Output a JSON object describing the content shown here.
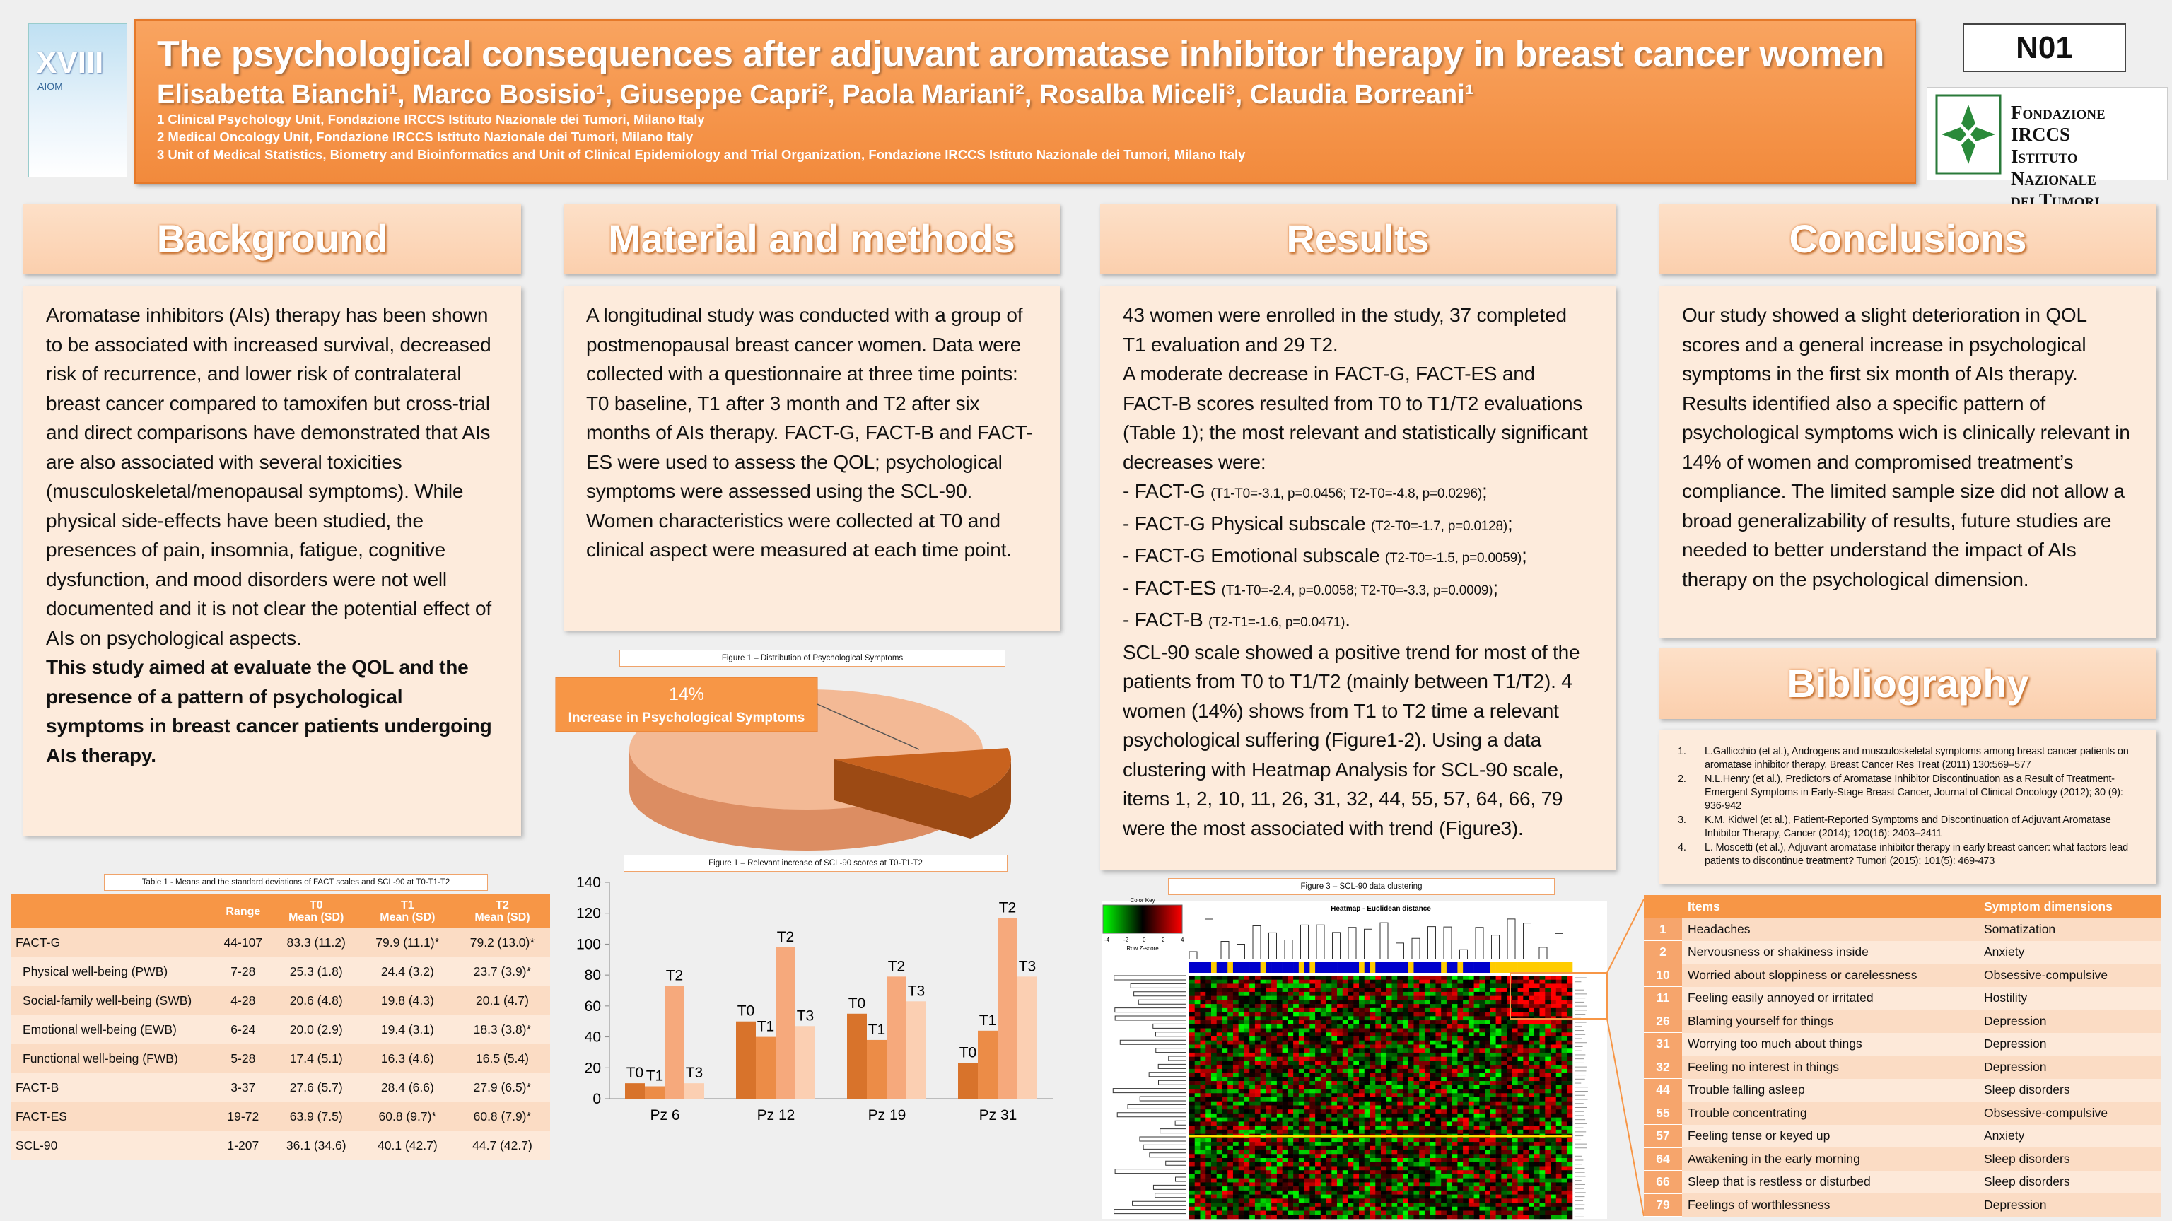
{
  "header": {
    "title": "The psychological consequences after adjuvant aromatase inhibitor therapy in breast cancer women",
    "authors": "Elisabetta Bianchi¹,  Marco Bosisio¹, Giuseppe Capri², Paola Mariani², Rosalba Miceli³, Claudia Borreani¹",
    "affiliations": [
      "1 Clinical Psychology Unit, Fondazione IRCCS Istituto Nazionale dei Tumori, Milano Italy",
      "2 Medical Oncology Unit, Fondazione IRCCS Istituto Nazionale dei Tumori, Milano Italy",
      "3 Unit of Medical Statistics, Biometry and Bioinformatics and Unit of Clinical Epidemiology and Trial Organization, Fondazione IRCCS Istituto Nazionale dei Tumori, Milano Italy"
    ],
    "code": "N01",
    "congress": [
      "XVIII",
      "AIOM"
    ],
    "logo": [
      "Fondazione IRCCS",
      "Istituto Nazionale",
      "dei Tumori"
    ]
  },
  "background": {
    "heading": "Background",
    "text": "Aromatase inhibitors (AIs) therapy has been shown to be associated with increased survival, decreased risk of recurrence, and lower risk of contralateral breast cancer compared to tamoxifen but cross-trial and direct comparisons have demonstrated that AIs are also associated with several toxicities (musculoskeletal/menopausal symptoms). While physical side-effects have been studied, the presences of pain, insomnia, fatigue, cognitive dysfunction, and mood disorders were not well documented and it is not clear the potential effect of AIs on psychological aspects.",
    "aim": "This study aimed at evaluate the QOL and the presence of a pattern of psychological symptoms in breast cancer patients undergoing AIs therapy."
  },
  "methods": {
    "heading": "Material and methods",
    "text": "A longitudinal study was conducted with a group of postmenopausal breast cancer women. Data were collected with a questionnaire at three time points: T0 baseline, T1 after 3 month and T2 after six months of AIs therapy. FACT-G, FACT-B and FACT-ES were used to assess the QOL; psychological symptoms were assessed using the SCL-90. Women characteristics were collected at T0 and clinical aspect were measured at each time point."
  },
  "results": {
    "heading": "Results",
    "intro": [
      "43 women were enrolled in the study, 37 completed T1 evaluation and 29 T2.",
      "A moderate decrease in FACT-G, FACT-ES and FACT-B scores resulted from T0 to T1/T2 evaluations (Table 1); the most relevant and statistically significant decreases were:"
    ],
    "bullets": [
      {
        "label": "- FACT-G ",
        "detail": "(T1-T0=-3.1, p=0.0456; T2-T0=-4.8, p=0.0296)",
        "end": ";"
      },
      {
        "label": "- FACT-G Physical subscale ",
        "detail": "(T2-T0=-1.7, p=0.0128)",
        "end": ";"
      },
      {
        "label": "- FACT-G Emotional subscale ",
        "detail": "(T2-T0=-1.5, p=0.0059)",
        "end": ";"
      },
      {
        "label": "- FACT-ES ",
        "detail": "(T1-T0=-2.4, p=0.0058; T2-T0=-3.3, p=0.0009)",
        "end": ";"
      },
      {
        "label": "- FACT-B ",
        "detail": "(T2-T1=-1.6, p=0.0471)",
        "end": "."
      }
    ],
    "outro": "SCL-90 scale showed a positive trend for most of the patients from T0 to T1/T2 (mainly between T1/T2).  4 women (14%) shows from T1 to T2 time a relevant psychological suffering (Figure1-2). Using a data clustering with Heatmap Analysis for SCL-90 scale, items 1, 2, 10, 11, 26, 31, 32, 44, 55, 57, 64, 66, 79 were the most associated with trend (Figure3)."
  },
  "conclusions": {
    "heading": "Conclusions",
    "text": "Our study showed a slight deterioration in QOL  scores and a general increase in psychological symptoms in the first six month of AIs therapy. Results identified also a specific pattern of psychological symptoms wich is clinically relevant in 14% of women and compromised treatment’s compliance. The limited sample size did not allow a broad generalizability of results, future studies are needed to better understand the impact of AIs therapy on the psychological dimension."
  },
  "bibliography": {
    "heading": "Bibliography",
    "entries": [
      {
        "n": "1.",
        "text": "L.Gallicchio (et al.), Androgens and musculoskeletal symptoms among breast cancer patients on aromatase inhibitor therapy, Breast Cancer Res Treat (2011) 130:569–577"
      },
      {
        "n": "2.",
        "text": "N.L.Henry (et al.), Predictors of Aromatase Inhibitor Discontinuation as a Result of Treatment-Emergent Symptoms in Early-Stage Breast Cancer, Journal of Clinical Oncology (2012); 30 (9): 936-942"
      },
      {
        "n": "3.",
        "text": "K.M. Kidwel (et al.), Patient-Reported Symptoms and Discontinuation of Adjuvant Aromatase Inhibitor Therapy, Cancer (2014); 120(16): 2403–2411"
      },
      {
        "n": "4.",
        "text": "L. Moscetti (et al.), Adjuvant aromatase inhibitor therapy in early breast cancer: what factors lead patients to discontinue treatment? Tumori (2015); 101(5): 469-473"
      }
    ]
  },
  "table1": {
    "title": "Table 1 - Means and the standard deviations of FACT scales and SCL-90 at T0-T1-T2",
    "columns": [
      [
        "Range"
      ],
      [
        "T0",
        "Mean (SD)"
      ],
      [
        "T1",
        "Mean (SD)"
      ],
      [
        "T2",
        "Mean (SD)"
      ]
    ],
    "rows": [
      {
        "cells": [
          "FACT-G",
          "44-107",
          "83.3 (11.2)",
          "79.9 (11.1)*",
          "79.2 (13.0)*"
        ]
      },
      {
        "sub": true,
        "cells": [
          "Physical well-being (PWB)",
          "7-28",
          "25.3 (1.8)",
          "24.4 (3.2)",
          "23.7 (3.9)*"
        ]
      },
      {
        "sub": true,
        "cells": [
          "Social-family well-being (SWB)",
          "4-28",
          "20.6 (4.8)",
          "19.8 (4.3)",
          "20.1 (4.7)"
        ]
      },
      {
        "sub": true,
        "cells": [
          "Emotional well-being (EWB)",
          "6-24",
          "20.0 (2.9)",
          "19.4 (3.1)",
          "18.3 (3.8)*"
        ]
      },
      {
        "sub": true,
        "cells": [
          "Functional well-being (FWB)",
          "5-28",
          "17.4 (5.1)",
          "16.3 (4.6)",
          "16.5 (5.4)"
        ]
      },
      {
        "cells": [
          "FACT-B",
          "3-37",
          "27.6 (5.7)",
          "28.4 (6.6)",
          "27.9 (6.5)*"
        ]
      },
      {
        "cells": [
          "FACT-ES",
          "19-72",
          "63.9 (7.5)",
          "60.8 (9.7)*",
          "60.8 (7.9)*"
        ]
      },
      {
        "cells": [
          "SCL-90",
          "1-207",
          "36.1 (34.6)",
          "40.1 (42.7)",
          "44.7 (42.7)"
        ]
      }
    ]
  },
  "chart_data": [
    {
      "type": "pie",
      "title": "Figure 1 – Distribution of Psychological Symptoms",
      "categories": [
        "Increase in Psychological Symptoms"
      ],
      "values": [
        14
      ],
      "value_labels": [
        "14%"
      ],
      "color": "#c8621e"
    },
    {
      "type": "bar",
      "title": "Figure 1 – Relevant increase of SCL-90 scores at T0-T1-T2",
      "categories": [
        "Pz 6",
        "Pz 12",
        "Pz 19",
        "Pz 31"
      ],
      "series": [
        {
          "name": "T0",
          "color": "#d8732b",
          "values": [
            10,
            50,
            55,
            23
          ]
        },
        {
          "name": "T1",
          "color": "#ec8c47",
          "values": [
            8,
            40,
            38,
            44
          ]
        },
        {
          "name": "T2",
          "color": "#f6a97c",
          "values": [
            73,
            98,
            79,
            117
          ]
        },
        {
          "name": "T3",
          "color": "#fbcfb2",
          "values": [
            10,
            47,
            63,
            79
          ]
        }
      ],
      "ylim": [
        0,
        140
      ],
      "yticks": [
        0,
        20,
        40,
        60,
        80,
        100,
        120,
        140
      ]
    }
  ],
  "figure3": {
    "title": "Figure 3 – SCL-90 data clustering",
    "key_title": "Color Key",
    "key_ticks": [
      "-4",
      "-2",
      "0",
      "2",
      "4"
    ],
    "key_label": "Row Z-score",
    "heading": "Heatmap - Euclidean distance"
  },
  "items": {
    "columns": [
      "Items",
      "Symptom dimensions"
    ],
    "rows": [
      [
        "1",
        "Headaches",
        "Somatization"
      ],
      [
        "2",
        "Nervousness or shakiness inside",
        "Anxiety"
      ],
      [
        "10",
        "Worried about sloppiness or carelessness",
        "Obsessive-compulsive"
      ],
      [
        "11",
        "Feeling easily annoyed or irritated",
        "Hostility"
      ],
      [
        "26",
        "Blaming yourself for things",
        "Depression"
      ],
      [
        "31",
        "Worrying too much about things",
        "Depression"
      ],
      [
        "32",
        "Feeling no interest in things",
        "Depression"
      ],
      [
        "44",
        "Trouble falling asleep",
        "Sleep disorders"
      ],
      [
        "55",
        "Trouble concentrating",
        "Obsessive-compulsive"
      ],
      [
        "57",
        "Feeling tense or keyed up",
        "Anxiety"
      ],
      [
        "64",
        "Awakening in the early morning",
        "Sleep disorders"
      ],
      [
        "66",
        "Sleep that is restless or disturbed",
        "Sleep disorders"
      ],
      [
        "79",
        "Feelings of worthlessness",
        "Depression"
      ]
    ]
  }
}
